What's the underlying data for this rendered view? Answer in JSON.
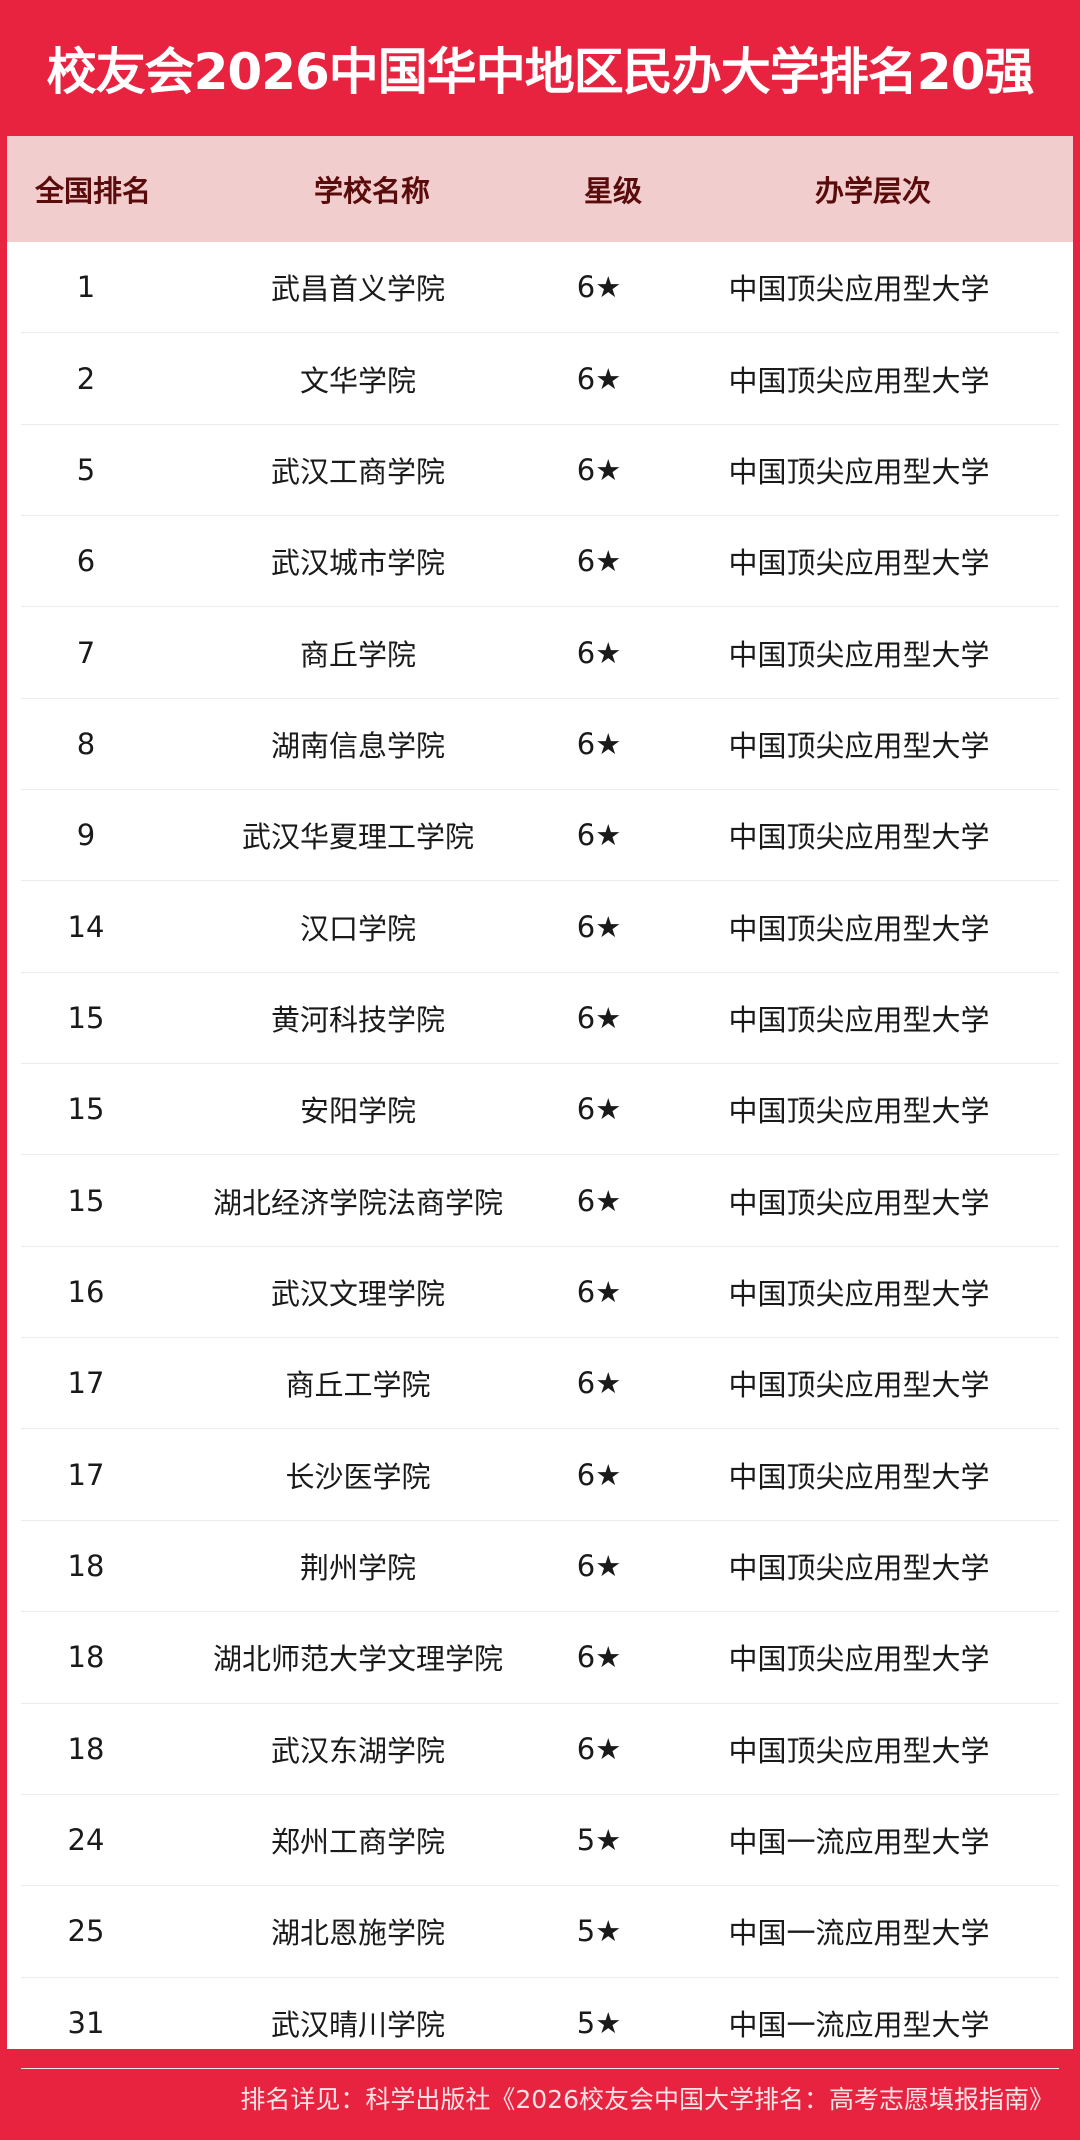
{
  "title": "校友会2026中国华中地区民办大学排名20强",
  "colors": {
    "brand_red": "#e82340",
    "header_pink": "#f2cdcd",
    "header_text": "#5a0c0c"
  },
  "headers": [
    "全国排名",
    "学校名称",
    "星级",
    "办学层次"
  ],
  "rows": [
    {
      "rank": "1",
      "name": "武昌首义学院",
      "stars": "6★",
      "level": "中国顶尖应用型大学"
    },
    {
      "rank": "2",
      "name": "文华学院",
      "stars": "6★",
      "level": "中国顶尖应用型大学"
    },
    {
      "rank": "5",
      "name": "武汉工商学院",
      "stars": "6★",
      "level": "中国顶尖应用型大学"
    },
    {
      "rank": "6",
      "name": "武汉城市学院",
      "stars": "6★",
      "level": "中国顶尖应用型大学"
    },
    {
      "rank": "7",
      "name": "商丘学院",
      "stars": "6★",
      "level": "中国顶尖应用型大学"
    },
    {
      "rank": "8",
      "name": "湖南信息学院",
      "stars": "6★",
      "level": "中国顶尖应用型大学"
    },
    {
      "rank": "9",
      "name": "武汉华夏理工学院",
      "stars": "6★",
      "level": "中国顶尖应用型大学"
    },
    {
      "rank": "14",
      "name": "汉口学院",
      "stars": "6★",
      "level": "中国顶尖应用型大学"
    },
    {
      "rank": "15",
      "name": "黄河科技学院",
      "stars": "6★",
      "level": "中国顶尖应用型大学"
    },
    {
      "rank": "15",
      "name": "安阳学院",
      "stars": "6★",
      "level": "中国顶尖应用型大学"
    },
    {
      "rank": "15",
      "name": "湖北经济学院法商学院",
      "stars": "6★",
      "level": "中国顶尖应用型大学"
    },
    {
      "rank": "16",
      "name": "武汉文理学院",
      "stars": "6★",
      "level": "中国顶尖应用型大学"
    },
    {
      "rank": "17",
      "name": "商丘工学院",
      "stars": "6★",
      "level": "中国顶尖应用型大学"
    },
    {
      "rank": "17",
      "name": "长沙医学院",
      "stars": "6★",
      "level": "中国顶尖应用型大学"
    },
    {
      "rank": "18",
      "name": "荆州学院",
      "stars": "6★",
      "level": "中国顶尖应用型大学"
    },
    {
      "rank": "18",
      "name": "湖北师范大学文理学院",
      "stars": "6★",
      "level": "中国顶尖应用型大学"
    },
    {
      "rank": "18",
      "name": "武汉东湖学院",
      "stars": "6★",
      "level": "中国顶尖应用型大学"
    },
    {
      "rank": "24",
      "name": "郑州工商学院",
      "stars": "5★",
      "level": "中国一流应用型大学"
    },
    {
      "rank": "25",
      "name": "湖北恩施学院",
      "stars": "5★",
      "level": "中国一流应用型大学"
    },
    {
      "rank": "31",
      "name": "武汉晴川学院",
      "stars": "5★",
      "level": "中国一流应用型大学"
    }
  ],
  "footer": "排名详见：科学出版社《2026校友会中国大学排名：高考志愿填报指南》"
}
